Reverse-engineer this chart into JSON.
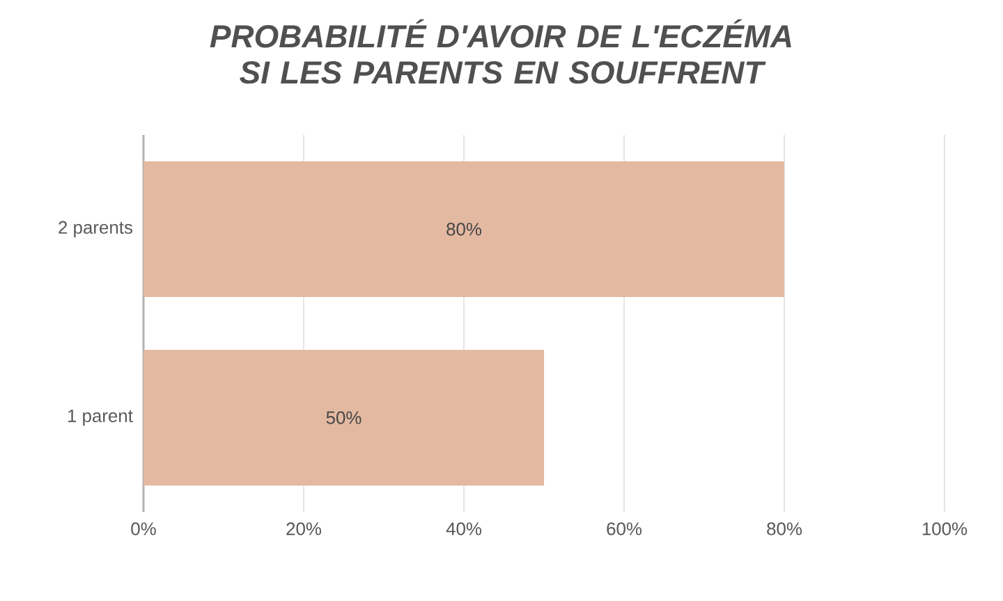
{
  "chart_data": {
    "type": "bar",
    "orientation": "horizontal",
    "title": "PROBABILITÉ D'AVOIR DE L'ECZÉMA SI LES PARENTS EN SOUFFRENT",
    "categories": [
      "2 parents",
      "1 parent"
    ],
    "values": [
      80,
      50
    ],
    "color": "#e4b9a1",
    "value_labels": [
      "80%",
      "50%"
    ],
    "xlim": [
      0,
      100
    ],
    "xticks": [
      {
        "value": 0,
        "label": "0%"
      },
      {
        "value": 20,
        "label": "20%"
      },
      {
        "value": 40,
        "label": "40%"
      },
      {
        "value": 60,
        "label": "60%"
      },
      {
        "value": 80,
        "label": "80%"
      },
      {
        "value": 100,
        "label": "100%"
      }
    ],
    "grid": "x"
  }
}
